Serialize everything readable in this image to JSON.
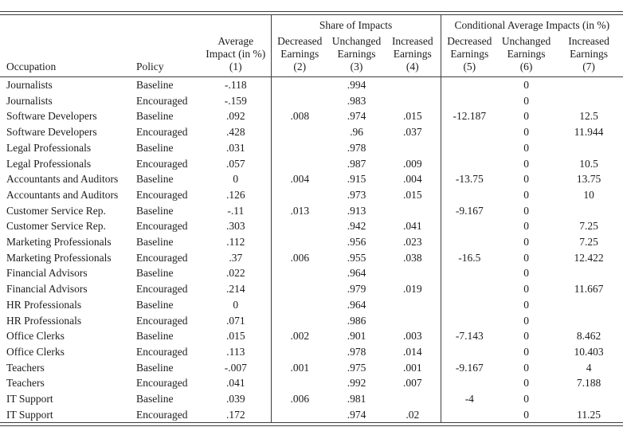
{
  "table": {
    "groups": [
      "Share of Impacts",
      "Conditional Average Impacts (in %)"
    ],
    "columns": [
      {
        "label": "Occupation",
        "num": ""
      },
      {
        "label": "Policy",
        "num": ""
      },
      {
        "label": "Average\nImpact (in %)",
        "num": "(1)"
      },
      {
        "label": "Decreased\nEarnings",
        "num": "(2)"
      },
      {
        "label": "Unchanged\nEarnings",
        "num": "(3)"
      },
      {
        "label": "Increased\nEarnings",
        "num": "(4)"
      },
      {
        "label": "Decreased\nEarnings",
        "num": "(5)"
      },
      {
        "label": "Unchanged\nEarnings",
        "num": "(6)"
      },
      {
        "label": "Increased\nEarnings",
        "num": "(7)"
      }
    ],
    "rows": [
      [
        "Journalists",
        "Baseline",
        "-.118",
        "",
        ".994",
        "",
        "",
        "0",
        ""
      ],
      [
        "Journalists",
        "Encouraged",
        "-.159",
        "",
        ".983",
        "",
        "",
        "0",
        ""
      ],
      [
        "Software Developers",
        "Baseline",
        ".092",
        ".008",
        ".974",
        ".015",
        "-12.187",
        "0",
        "12.5"
      ],
      [
        "Software Developers",
        "Encouraged",
        ".428",
        "",
        ".96",
        ".037",
        "",
        "0",
        "11.944"
      ],
      [
        "Legal Professionals",
        "Baseline",
        ".031",
        "",
        ".978",
        "",
        "",
        "0",
        ""
      ],
      [
        "Legal Professionals",
        "Encouraged",
        ".057",
        "",
        ".987",
        ".009",
        "",
        "0",
        "10.5"
      ],
      [
        "Accountants and Auditors",
        "Baseline",
        "0",
        ".004",
        ".915",
        ".004",
        "-13.75",
        "0",
        "13.75"
      ],
      [
        "Accountants and Auditors",
        "Encouraged",
        ".126",
        "",
        ".973",
        ".015",
        "",
        "0",
        "10"
      ],
      [
        "Customer Service Rep.",
        "Baseline",
        "-.11",
        ".013",
        ".913",
        "",
        "-9.167",
        "0",
        ""
      ],
      [
        "Customer Service Rep.",
        "Encouraged",
        ".303",
        "",
        ".942",
        ".041",
        "",
        "0",
        "7.25"
      ],
      [
        "Marketing Professionals",
        "Baseline",
        ".112",
        "",
        ".956",
        ".023",
        "",
        "0",
        "7.25"
      ],
      [
        "Marketing Professionals",
        "Encouraged",
        ".37",
        ".006",
        ".955",
        ".038",
        "-16.5",
        "0",
        "12.422"
      ],
      [
        "Financial Advisors",
        "Baseline",
        ".022",
        "",
        ".964",
        "",
        "",
        "0",
        ""
      ],
      [
        "Financial Advisors",
        "Encouraged",
        ".214",
        "",
        ".979",
        ".019",
        "",
        "0",
        "11.667"
      ],
      [
        "HR Professionals",
        "Baseline",
        "0",
        "",
        ".964",
        "",
        "",
        "0",
        ""
      ],
      [
        "HR Professionals",
        "Encouraged",
        ".071",
        "",
        ".986",
        "",
        "",
        "0",
        ""
      ],
      [
        "Office Clerks",
        "Baseline",
        ".015",
        ".002",
        ".901",
        ".003",
        "-7.143",
        "0",
        "8.462"
      ],
      [
        "Office Clerks",
        "Encouraged",
        ".113",
        "",
        ".978",
        ".014",
        "",
        "0",
        "10.403"
      ],
      [
        "Teachers",
        "Baseline",
        "-.007",
        ".001",
        ".975",
        ".001",
        "-9.167",
        "0",
        "4"
      ],
      [
        "Teachers",
        "Encouraged",
        ".041",
        "",
        ".992",
        ".007",
        "",
        "0",
        "7.188"
      ],
      [
        "IT Support",
        "Baseline",
        ".039",
        ".006",
        ".981",
        "",
        "-4",
        "0",
        ""
      ],
      [
        "IT Support",
        "Encouraged",
        ".172",
        "",
        ".974",
        ".02",
        "",
        "0",
        "11.25"
      ]
    ],
    "line_color": "#3d3d3d"
  }
}
